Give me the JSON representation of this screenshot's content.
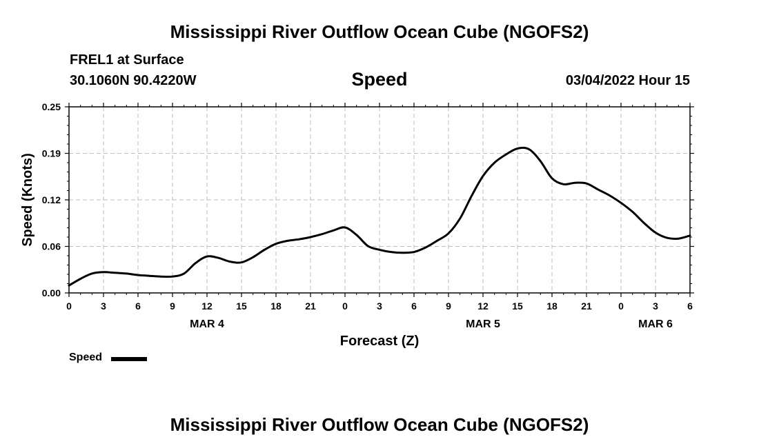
{
  "header": {
    "title": "Mississippi River Outflow Ocean Cube (NGOFS2)",
    "station": "FREL1 at Surface",
    "coords": "30.1060N  90.4220W",
    "variable": "Speed",
    "datetime": "03/04/2022 Hour 15"
  },
  "footer": {
    "title": "Mississippi River Outflow Ocean Cube (NGOFS2)"
  },
  "legend": {
    "label": "Speed",
    "color": "#000000"
  },
  "chart_data": {
    "type": "line",
    "title": "Speed",
    "xlabel": "Forecast (Z)",
    "ylabel": "Speed (Knots)",
    "xlim": [
      0,
      54
    ],
    "ylim": [
      0,
      0.25
    ],
    "grid": true,
    "legend_position": "bottom-left",
    "x_ticks": [
      {
        "x": 0,
        "label": "0"
      },
      {
        "x": 3,
        "label": "3"
      },
      {
        "x": 6,
        "label": "6"
      },
      {
        "x": 9,
        "label": "9"
      },
      {
        "x": 12,
        "label": "12"
      },
      {
        "x": 15,
        "label": "15"
      },
      {
        "x": 18,
        "label": "18"
      },
      {
        "x": 21,
        "label": "21"
      },
      {
        "x": 24,
        "label": "0"
      },
      {
        "x": 27,
        "label": "3"
      },
      {
        "x": 30,
        "label": "6"
      },
      {
        "x": 33,
        "label": "9"
      },
      {
        "x": 36,
        "label": "12"
      },
      {
        "x": 39,
        "label": "15"
      },
      {
        "x": 42,
        "label": "18"
      },
      {
        "x": 45,
        "label": "21"
      },
      {
        "x": 48,
        "label": "0"
      },
      {
        "x": 51,
        "label": "3"
      },
      {
        "x": 54,
        "label": "6"
      }
    ],
    "y_ticks": [
      {
        "y": 0.0,
        "label": "0.00"
      },
      {
        "y": 0.0625,
        "label": "0.06"
      },
      {
        "y": 0.125,
        "label": "0.12"
      },
      {
        "y": 0.1875,
        "label": "0.19"
      },
      {
        "y": 0.25,
        "label": "0.25"
      }
    ],
    "date_labels": [
      {
        "x": 12,
        "label": "MAR 4"
      },
      {
        "x": 36,
        "label": "MAR 5"
      },
      {
        "x": 51,
        "label": "MAR 6"
      }
    ],
    "series": [
      {
        "name": "Speed",
        "color": "#000000",
        "x": [
          0,
          1,
          2,
          3,
          4,
          5,
          6,
          7,
          8,
          9,
          10,
          11,
          12,
          13,
          14,
          15,
          16,
          17,
          18,
          19,
          20,
          21,
          22,
          23,
          24,
          25,
          26,
          27,
          28,
          29,
          30,
          31,
          32,
          33,
          34,
          35,
          36,
          37,
          38,
          39,
          40,
          41,
          42,
          43,
          44,
          45,
          46,
          47,
          48,
          49,
          50,
          51,
          52,
          53,
          54
        ],
        "values": [
          0.01,
          0.019,
          0.026,
          0.028,
          0.027,
          0.026,
          0.024,
          0.023,
          0.022,
          0.022,
          0.026,
          0.04,
          0.049,
          0.047,
          0.042,
          0.041,
          0.048,
          0.058,
          0.066,
          0.07,
          0.072,
          0.075,
          0.079,
          0.084,
          0.088,
          0.078,
          0.063,
          0.058,
          0.055,
          0.054,
          0.055,
          0.061,
          0.07,
          0.08,
          0.1,
          0.13,
          0.157,
          0.175,
          0.186,
          0.194,
          0.193,
          0.177,
          0.154,
          0.146,
          0.148,
          0.147,
          0.139,
          0.131,
          0.121,
          0.109,
          0.094,
          0.081,
          0.074,
          0.073,
          0.077
        ]
      }
    ]
  }
}
